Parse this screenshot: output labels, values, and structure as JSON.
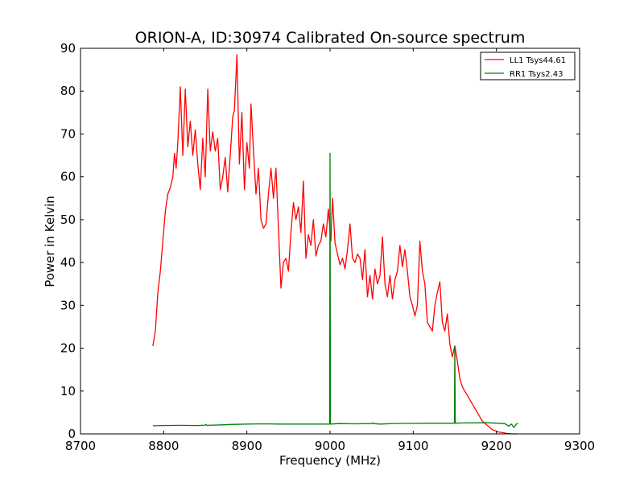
{
  "chart_data": {
    "type": "line",
    "title": "ORION-A, ID:30974 Calibrated On-source spectrum",
    "xlabel": "Frequency (MHz)",
    "ylabel": "Power in Kelvin",
    "xlim": [
      8700,
      9300
    ],
    "ylim": [
      0,
      90
    ],
    "xticks": [
      8700,
      8800,
      8900,
      9000,
      9100,
      9200,
      9300
    ],
    "yticks": [
      0,
      10,
      20,
      30,
      40,
      50,
      60,
      70,
      80,
      90
    ],
    "grid": false,
    "legend": "top-right",
    "series": [
      {
        "name": "LL1 Tsys44.61",
        "color": "#ff0000",
        "points": [
          [
            8787,
            20.5
          ],
          [
            8790,
            24
          ],
          [
            8793,
            33
          ],
          [
            8796,
            38
          ],
          [
            8799,
            45
          ],
          [
            8802,
            52
          ],
          [
            8805,
            56
          ],
          [
            8808,
            57.5
          ],
          [
            8811,
            60
          ],
          [
            8813,
            65.5
          ],
          [
            8815,
            62
          ],
          [
            8817,
            68
          ],
          [
            8820,
            81
          ],
          [
            8823,
            65
          ],
          [
            8826,
            80.5
          ],
          [
            8829,
            67
          ],
          [
            8832,
            73
          ],
          [
            8835,
            65
          ],
          [
            8838,
            71
          ],
          [
            8841,
            63
          ],
          [
            8844,
            57
          ],
          [
            8847,
            69
          ],
          [
            8850,
            60
          ],
          [
            8853,
            80.5
          ],
          [
            8856,
            66
          ],
          [
            8859,
            70.5
          ],
          [
            8862,
            66
          ],
          [
            8865,
            69
          ],
          [
            8868,
            57
          ],
          [
            8871,
            60
          ],
          [
            8874,
            64.5
          ],
          [
            8877,
            56.5
          ],
          [
            8880,
            65
          ],
          [
            8883,
            74
          ],
          [
            8885,
            75.5
          ],
          [
            8888,
            88.5
          ],
          [
            8891,
            63
          ],
          [
            8894,
            75
          ],
          [
            8897,
            57
          ],
          [
            8900,
            68
          ],
          [
            8903,
            62
          ],
          [
            8905,
            77
          ],
          [
            8908,
            66
          ],
          [
            8911,
            56
          ],
          [
            8914,
            62
          ],
          [
            8917,
            50
          ],
          [
            8920,
            48
          ],
          [
            8923,
            49
          ],
          [
            8926,
            56
          ],
          [
            8929,
            62
          ],
          [
            8932,
            55
          ],
          [
            8935,
            62
          ],
          [
            8938,
            48
          ],
          [
            8941,
            34
          ],
          [
            8944,
            40
          ],
          [
            8947,
            41
          ],
          [
            8950,
            38
          ],
          [
            8953,
            47
          ],
          [
            8956,
            54
          ],
          [
            8959,
            50
          ],
          [
            8962,
            53
          ],
          [
            8965,
            47
          ],
          [
            8968,
            59
          ],
          [
            8971,
            41
          ],
          [
            8974,
            46.5
          ],
          [
            8977,
            44
          ],
          [
            8980,
            50
          ],
          [
            8983,
            41.5
          ],
          [
            8986,
            44
          ],
          [
            8989,
            45
          ],
          [
            8992,
            49
          ],
          [
            8995,
            46
          ],
          [
            8998,
            52.5
          ],
          [
            9001,
            45
          ],
          [
            9003,
            55
          ],
          [
            9006,
            44.5
          ],
          [
            9009,
            42
          ],
          [
            9012,
            39.5
          ],
          [
            9015,
            41
          ],
          [
            9018,
            38.5
          ],
          [
            9021,
            43
          ],
          [
            9024,
            49
          ],
          [
            9027,
            41
          ],
          [
            9030,
            40
          ],
          [
            9033,
            42
          ],
          [
            9036,
            41
          ],
          [
            9039,
            36
          ],
          [
            9042,
            43
          ],
          [
            9045,
            32
          ],
          [
            9048,
            37
          ],
          [
            9051,
            31.5
          ],
          [
            9054,
            38.5
          ],
          [
            9057,
            35
          ],
          [
            9060,
            37
          ],
          [
            9063,
            46
          ],
          [
            9066,
            35
          ],
          [
            9069,
            32
          ],
          [
            9072,
            37
          ],
          [
            9075,
            31.5
          ],
          [
            9078,
            36
          ],
          [
            9081,
            38
          ],
          [
            9084,
            44
          ],
          [
            9087,
            39
          ],
          [
            9090,
            43
          ],
          [
            9093,
            38
          ],
          [
            9096,
            32
          ],
          [
            9099,
            30
          ],
          [
            9102,
            27.5
          ],
          [
            9105,
            30
          ],
          [
            9108,
            45
          ],
          [
            9111,
            38
          ],
          [
            9114,
            35
          ],
          [
            9117,
            26
          ],
          [
            9120,
            25
          ],
          [
            9123,
            24
          ],
          [
            9126,
            30
          ],
          [
            9129,
            33
          ],
          [
            9132,
            35.5
          ],
          [
            9135,
            26
          ],
          [
            9138,
            24
          ],
          [
            9141,
            28
          ],
          [
            9144,
            21
          ],
          [
            9147,
            18
          ],
          [
            9150,
            20.5
          ],
          [
            9153,
            17
          ],
          [
            9156,
            13
          ],
          [
            9159,
            11
          ],
          [
            9162,
            10
          ],
          [
            9165,
            9
          ],
          [
            9168,
            8
          ],
          [
            9171,
            7
          ],
          [
            9174,
            6
          ],
          [
            9177,
            5
          ],
          [
            9180,
            4
          ],
          [
            9183,
            3
          ],
          [
            9186,
            2.5
          ],
          [
            9189,
            2
          ],
          [
            9192,
            1.5
          ],
          [
            9195,
            1
          ],
          [
            9198,
            0.8
          ],
          [
            9201,
            0.5
          ],
          [
            9204,
            0.4
          ],
          [
            9207,
            0.3
          ],
          [
            9210,
            0.2
          ],
          [
            9213,
            0.1
          ],
          [
            9216,
            0.05
          ],
          [
            9219,
            0
          ],
          [
            9222,
            0
          ],
          [
            9225,
            0
          ]
        ]
      },
      {
        "name": "RR1 Tsys2.43",
        "color": "#008000",
        "points": [
          [
            8787,
            1.9
          ],
          [
            8800,
            1.95
          ],
          [
            8820,
            2.0
          ],
          [
            8840,
            1.95
          ],
          [
            8850,
            2.05
          ],
          [
            8851,
            2.2
          ],
          [
            8852,
            2.0
          ],
          [
            8870,
            2.1
          ],
          [
            8880,
            2.2
          ],
          [
            8900,
            2.3
          ],
          [
            8920,
            2.35
          ],
          [
            8940,
            2.3
          ],
          [
            8960,
            2.3
          ],
          [
            8980,
            2.3
          ],
          [
            8999.5,
            2.3
          ],
          [
            9000,
            65.5
          ],
          [
            9000.5,
            2.3
          ],
          [
            9010,
            2.4
          ],
          [
            9030,
            2.35
          ],
          [
            9050,
            2.4
          ],
          [
            9051,
            2.6
          ],
          [
            9052,
            2.4
          ],
          [
            9060,
            2.3
          ],
          [
            9080,
            2.45
          ],
          [
            9100,
            2.45
          ],
          [
            9120,
            2.5
          ],
          [
            9140,
            2.5
          ],
          [
            9149.5,
            2.5
          ],
          [
            9150,
            20.5
          ],
          [
            9150.5,
            2.5
          ],
          [
            9160,
            2.55
          ],
          [
            9180,
            2.6
          ],
          [
            9190,
            2.6
          ],
          [
            9200,
            2.5
          ],
          [
            9210,
            2.4
          ],
          [
            9215,
            1.8
          ],
          [
            9218,
            2.3
          ],
          [
            9221,
            1.5
          ],
          [
            9224,
            2.3
          ],
          [
            9226,
            2.5
          ]
        ]
      }
    ]
  }
}
